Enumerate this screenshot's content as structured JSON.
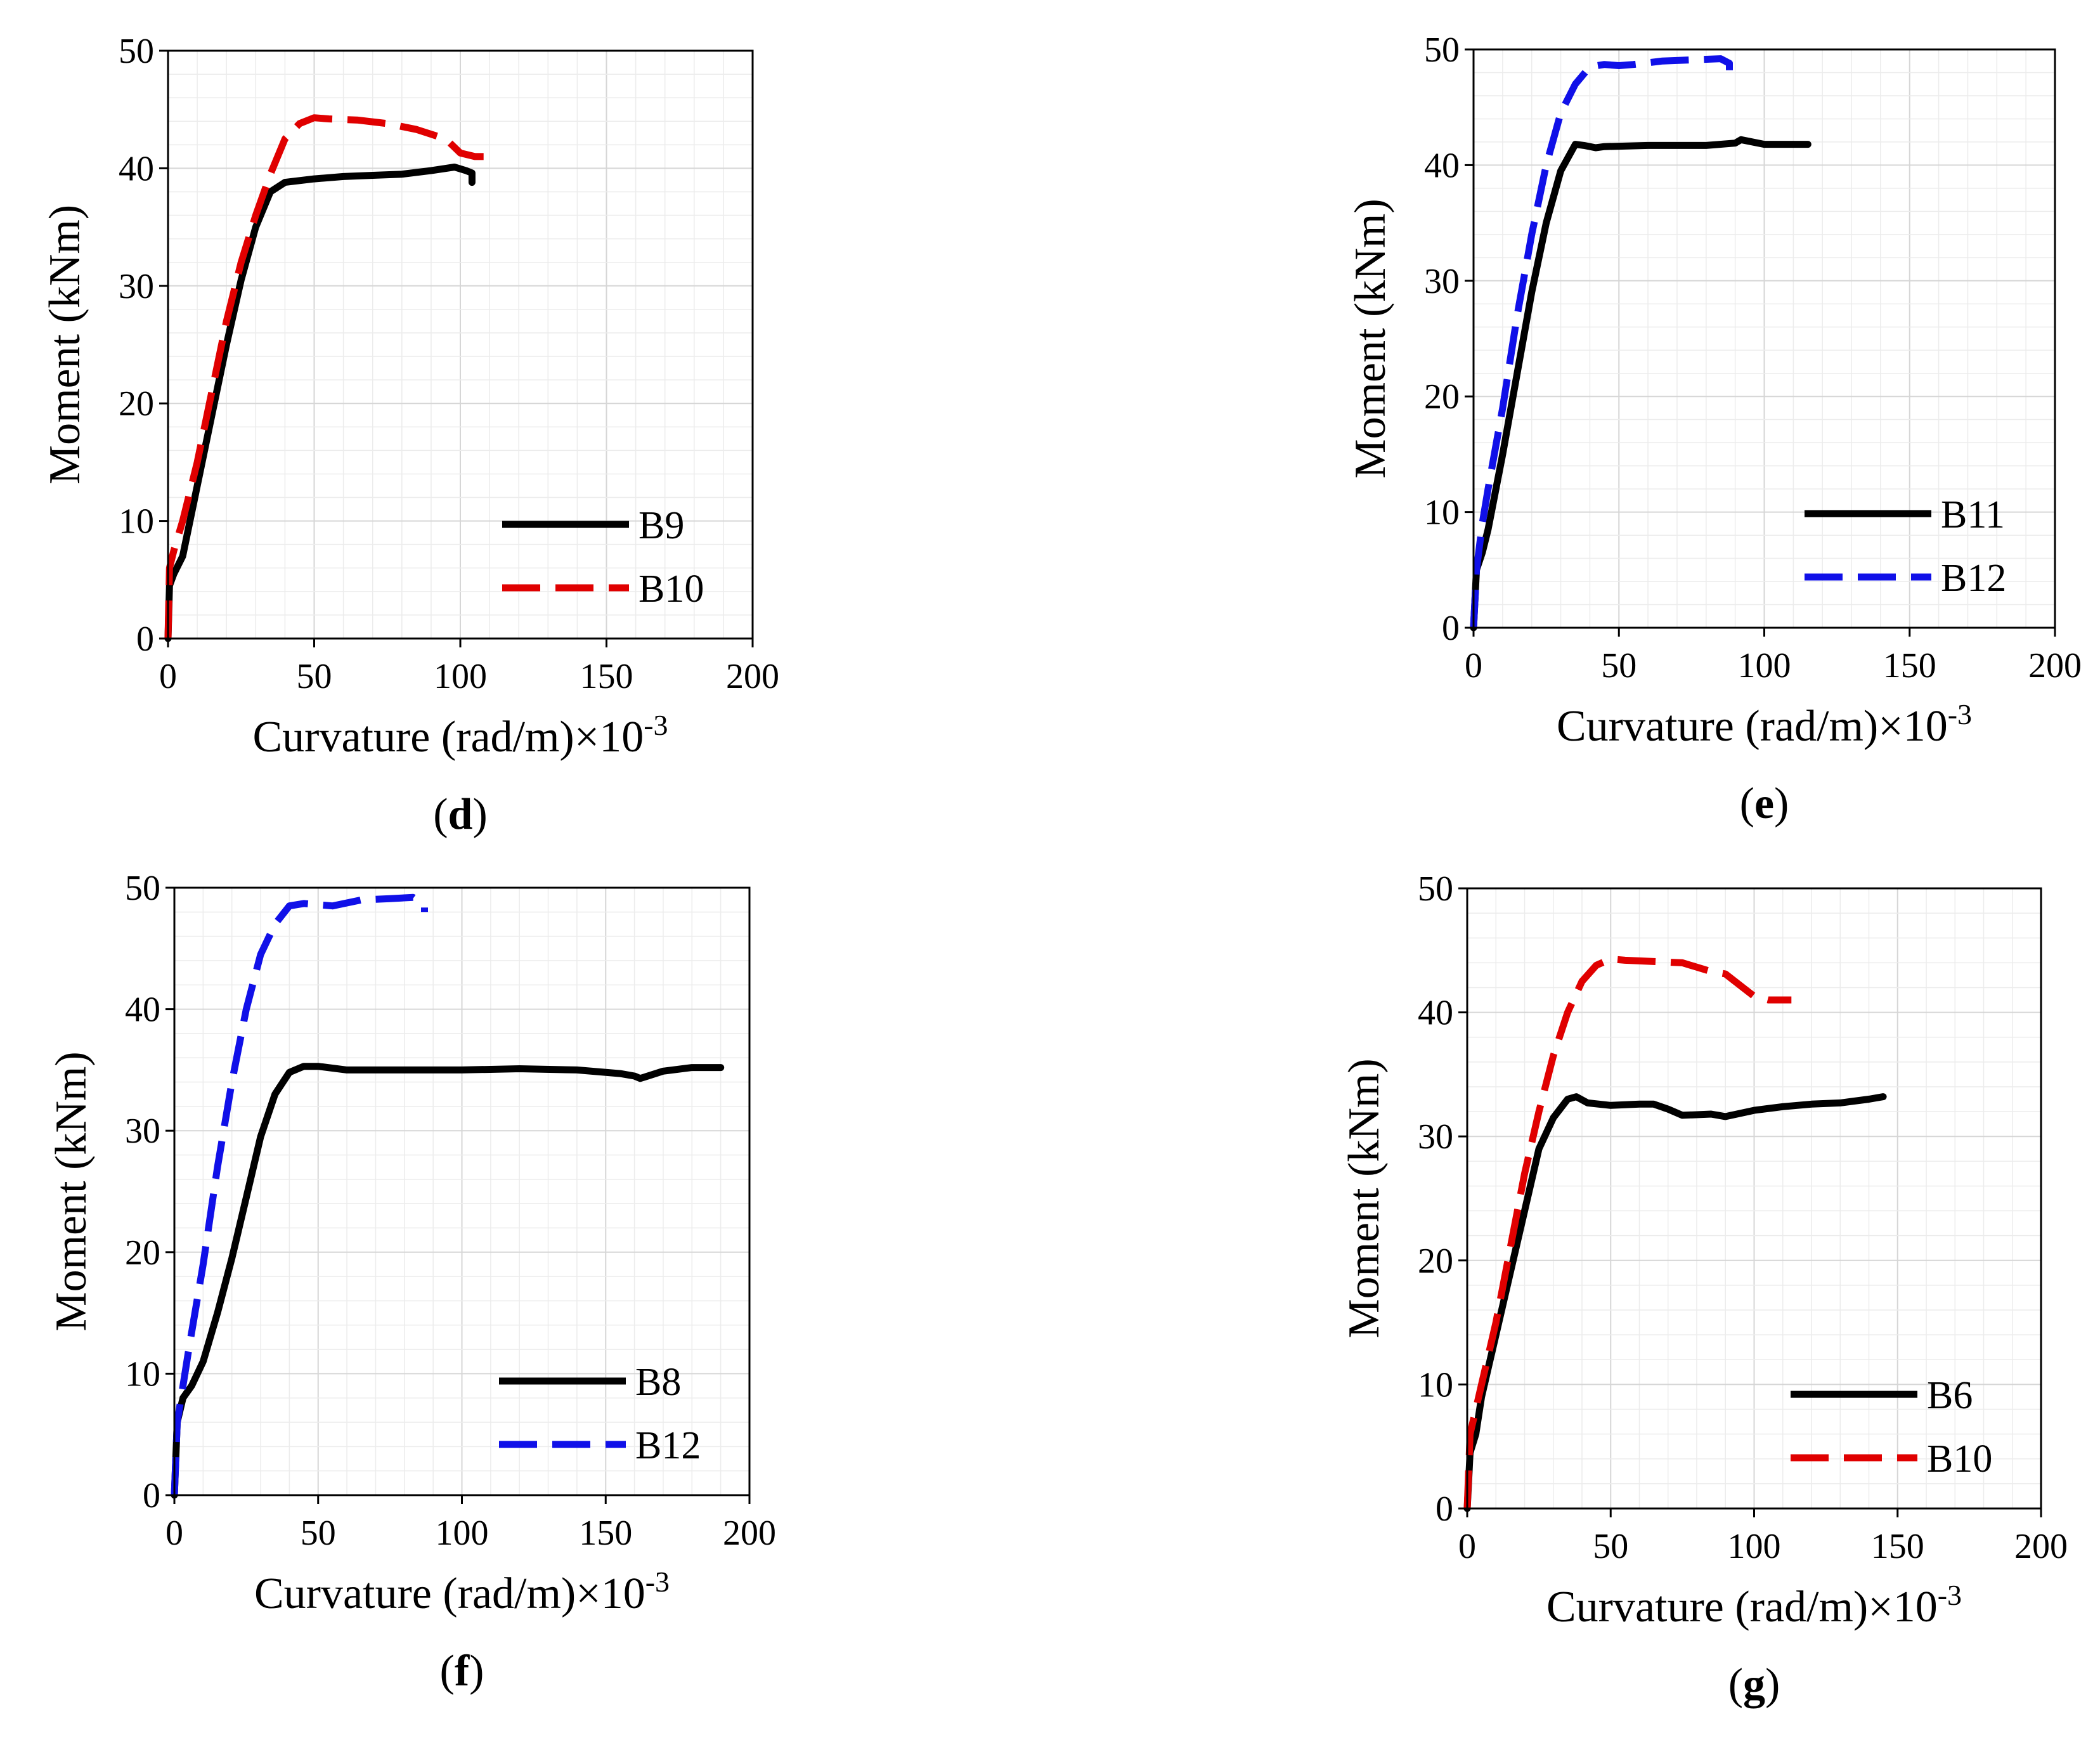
{
  "chart_data": [
    {
      "panel": "(d)",
      "panel_letter": "d",
      "type": "line",
      "xlabel": "Curvature (rad/m)×10",
      "xlabel_exp": "-3",
      "ylabel": "Moment (kNm)",
      "xlim": [
        0,
        200
      ],
      "ylim": [
        0,
        50
      ],
      "xticks": [
        0,
        50,
        100,
        150,
        200
      ],
      "yticks": [
        0,
        10,
        20,
        30,
        40,
        50
      ],
      "grid": true,
      "legend_position": "bottom-right",
      "series": [
        {
          "name": "B9",
          "color": "#000000",
          "style": "solid",
          "x": [
            0,
            0.5,
            2,
            5,
            10,
            15,
            20,
            25,
            30,
            35,
            40,
            50,
            60,
            70,
            80,
            90,
            98,
            102,
            104,
            104
          ],
          "y": [
            0,
            4.5,
            5.5,
            7,
            13,
            19,
            25,
            30.5,
            35,
            38,
            38.8,
            39.1,
            39.3,
            39.4,
            39.5,
            39.8,
            40.1,
            39.8,
            39.6,
            38.8
          ]
        },
        {
          "name": "B10",
          "color": "#e00000",
          "style": "dashed",
          "x": [
            0,
            0.5,
            2,
            5,
            10,
            15,
            20,
            25,
            30,
            35,
            40,
            45,
            50,
            55,
            65,
            75,
            85,
            95,
            100,
            105,
            110
          ],
          "y": [
            0,
            6,
            7.5,
            10,
            15,
            21,
            27,
            32,
            36,
            39.5,
            42.5,
            43.8,
            44.3,
            44.2,
            44.1,
            43.8,
            43.3,
            42.5,
            41.3,
            41.0,
            41.0
          ]
        }
      ]
    },
    {
      "panel": "(e)",
      "panel_letter": "e",
      "type": "line",
      "xlabel": "Curvature (rad/m)×10",
      "xlabel_exp": "-3",
      "ylabel": "Moment (kNm)",
      "xlim": [
        0,
        200
      ],
      "ylim": [
        0,
        50
      ],
      "xticks": [
        0,
        50,
        100,
        150,
        200
      ],
      "yticks": [
        0,
        10,
        20,
        30,
        40,
        50
      ],
      "grid": true,
      "legend_position": "bottom-right",
      "series": [
        {
          "name": "B11",
          "color": "#000000",
          "style": "solid",
          "x": [
            0,
            1,
            3,
            5,
            10,
            15,
            20,
            25,
            30,
            35,
            38,
            42,
            45,
            60,
            80,
            90,
            92,
            100,
            115
          ],
          "y": [
            0,
            5,
            6.5,
            8.5,
            15,
            22,
            29,
            35,
            39.5,
            41.8,
            41.7,
            41.5,
            41.6,
            41.7,
            41.7,
            41.9,
            42.2,
            41.8,
            41.8
          ]
        },
        {
          "name": "B12",
          "color": "#1010e8",
          "style": "dashed",
          "x": [
            0,
            1,
            3,
            5,
            10,
            15,
            20,
            25,
            30,
            35,
            40,
            45,
            50,
            55,
            65,
            75,
            85,
            88,
            88
          ],
          "y": [
            0,
            5,
            9,
            12,
            19,
            27,
            34,
            40,
            44.5,
            47,
            48.5,
            48.7,
            48.6,
            48.7,
            49,
            49.1,
            49.2,
            48.8,
            48.2
          ]
        }
      ]
    },
    {
      "panel": "(f)",
      "panel_letter": "f",
      "type": "line",
      "xlabel": "Curvature (rad/m)×10",
      "xlabel_exp": "-3",
      "ylabel": "Moment (kNm)",
      "xlim": [
        0,
        200
      ],
      "ylim": [
        0,
        50
      ],
      "xticks": [
        0,
        50,
        100,
        150,
        200
      ],
      "yticks": [
        0,
        10,
        20,
        30,
        40,
        50
      ],
      "grid": true,
      "legend_position": "bottom-right",
      "series": [
        {
          "name": "B8",
          "color": "#000000",
          "style": "solid",
          "x": [
            0,
            1,
            3,
            6,
            10,
            15,
            20,
            25,
            30,
            35,
            40,
            45,
            50,
            60,
            80,
            100,
            120,
            140,
            155,
            160,
            162,
            170,
            180,
            190
          ],
          "y": [
            0,
            6,
            8,
            9,
            11,
            15,
            19.5,
            24.5,
            29.5,
            33,
            34.8,
            35.3,
            35.3,
            35.0,
            35.0,
            35.0,
            35.1,
            35.0,
            34.7,
            34.5,
            34.3,
            34.9,
            35.2,
            35.2
          ]
        },
        {
          "name": "B12",
          "color": "#1010e8",
          "style": "dashed",
          "x": [
            0,
            1,
            3,
            5,
            10,
            15,
            20,
            25,
            30,
            35,
            40,
            45,
            50,
            55,
            65,
            75,
            83,
            87,
            87
          ],
          "y": [
            0,
            6,
            9,
            12,
            19,
            27,
            34,
            40,
            44.5,
            47,
            48.5,
            48.7,
            48.6,
            48.5,
            49,
            49.1,
            49.2,
            48.5,
            48.0
          ]
        }
      ]
    },
    {
      "panel": "(g)",
      "panel_letter": "g",
      "type": "line",
      "xlabel": "Curvature (rad/m)×10",
      "xlabel_exp": "-3",
      "ylabel": "Moment (kNm)",
      "xlim": [
        0,
        200
      ],
      "ylim": [
        0,
        50
      ],
      "xticks": [
        0,
        50,
        100,
        150,
        200
      ],
      "yticks": [
        0,
        10,
        20,
        30,
        40,
        50
      ],
      "grid": true,
      "legend_position": "bottom-right",
      "series": [
        {
          "name": "B6",
          "color": "#000000",
          "style": "solid",
          "x": [
            0,
            1,
            3,
            5,
            10,
            15,
            20,
            25,
            30,
            35,
            38,
            42,
            50,
            60,
            65,
            70,
            75,
            85,
            90,
            100,
            110,
            120,
            130,
            140,
            145
          ],
          "y": [
            0,
            4.5,
            6,
            9,
            14,
            19,
            24,
            29,
            31.5,
            33,
            33.2,
            32.7,
            32.5,
            32.6,
            32.6,
            32.2,
            31.7,
            31.8,
            31.6,
            32.1,
            32.4,
            32.6,
            32.7,
            33.0,
            33.2
          ]
        },
        {
          "name": "B10",
          "color": "#e00000",
          "style": "dashed",
          "x": [
            0,
            1,
            3,
            5,
            10,
            15,
            20,
            25,
            30,
            35,
            40,
            45,
            50,
            55,
            65,
            75,
            85,
            90,
            95,
            100,
            105,
            113
          ],
          "y": [
            0,
            6,
            8,
            10,
            15,
            21,
            27,
            32,
            36.5,
            40,
            42.5,
            43.8,
            44.3,
            44.2,
            44.1,
            44,
            43.3,
            43.1,
            42.2,
            41.3,
            41.0,
            41.0
          ]
        }
      ]
    }
  ]
}
